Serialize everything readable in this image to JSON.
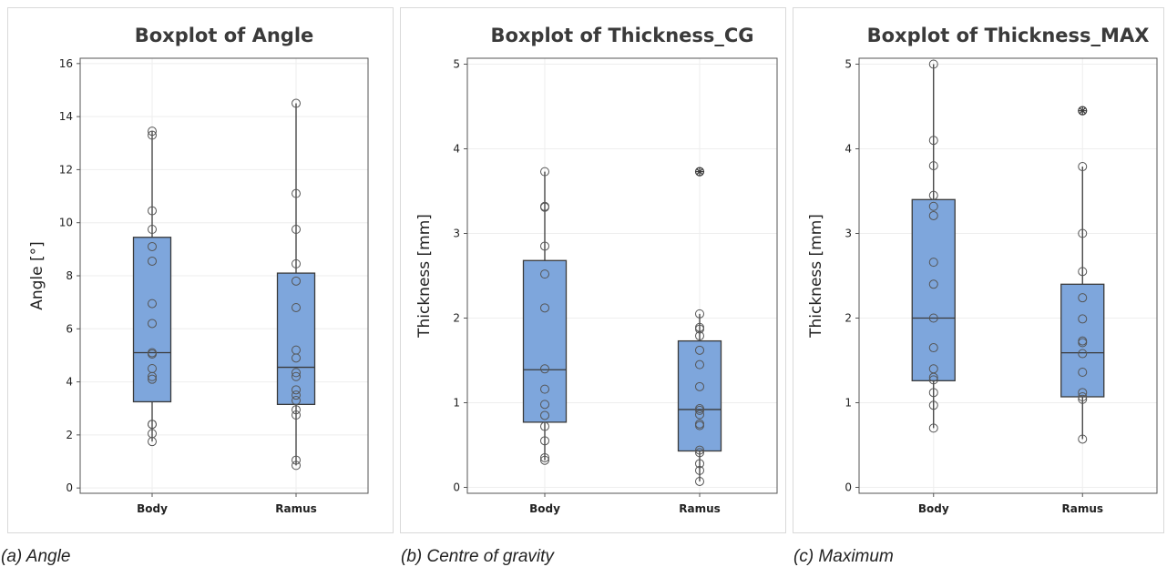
{
  "captions": [
    "(a) Angle",
    "(b) Centre of gravity",
    "(c) Maximum"
  ],
  "colors": {
    "box_fill": "#7ea6dc",
    "box_stroke": "#3a3a3a",
    "point_stroke": "#555555",
    "grid": "#eeeeee",
    "frame": "#555555"
  },
  "chart_data": [
    {
      "type": "box",
      "title": "Boxplot of Angle",
      "xlabel": "",
      "ylabel": "Angle [°]",
      "ylim": [
        -0.2,
        16.2
      ],
      "yticks": [
        0,
        2,
        4,
        6,
        8,
        10,
        12,
        14,
        16
      ],
      "grid": true,
      "categories": [
        "Body",
        "Ramus"
      ],
      "boxes": [
        {
          "name": "Body",
          "q1": 3.25,
          "median": 5.1,
          "q3": 9.45,
          "whisker_low": 1.75,
          "whisker_high": 13.45,
          "outliers": [],
          "points": [
            13.45,
            13.3,
            10.45,
            9.75,
            9.1,
            8.55,
            6.95,
            6.2,
            5.1,
            5.05,
            4.5,
            4.2,
            4.1,
            2.4,
            2.4,
            2.05,
            1.75
          ]
        },
        {
          "name": "Ramus",
          "q1": 3.15,
          "median": 4.55,
          "q3": 8.1,
          "whisker_low": 0.85,
          "whisker_high": 14.5,
          "outliers": [],
          "points": [
            14.5,
            11.1,
            9.75,
            8.45,
            7.8,
            6.8,
            5.2,
            4.9,
            4.35,
            4.2,
            3.7,
            3.5,
            3.3,
            2.95,
            2.75,
            1.05,
            0.85
          ]
        }
      ]
    },
    {
      "type": "box",
      "title": "Boxplot of Thickness_CG",
      "xlabel": "",
      "ylabel": "Thickness [mm]",
      "ylim": [
        -0.07,
        5.07
      ],
      "yticks": [
        0,
        1,
        2,
        3,
        4,
        5
      ],
      "grid": true,
      "categories": [
        "Body",
        "Ramus"
      ],
      "boxes": [
        {
          "name": "Body",
          "q1": 0.77,
          "median": 1.39,
          "q3": 2.68,
          "whisker_low": 0.32,
          "whisker_high": 3.73,
          "outliers": [],
          "points": [
            3.73,
            3.32,
            3.31,
            2.85,
            2.52,
            2.12,
            1.4,
            1.16,
            0.98,
            0.85,
            0.72,
            0.55,
            0.35,
            0.32
          ]
        },
        {
          "name": "Ramus",
          "q1": 0.43,
          "median": 0.92,
          "q3": 1.73,
          "whisker_low": 0.07,
          "whisker_high": 2.05,
          "outliers": [
            3.73
          ],
          "points": [
            2.05,
            1.89,
            1.87,
            1.79,
            1.62,
            1.45,
            1.19,
            0.93,
            0.91,
            0.86,
            0.75,
            0.73,
            0.44,
            0.41,
            0.28,
            0.2,
            0.07
          ]
        }
      ]
    },
    {
      "type": "box",
      "title": "Boxplot of Thickness_MAX",
      "xlabel": "",
      "ylabel": "Thickness [mm]",
      "ylim": [
        -0.07,
        5.07
      ],
      "yticks": [
        0,
        1,
        2,
        3,
        4,
        5
      ],
      "grid": true,
      "categories": [
        "Body",
        "Ramus"
      ],
      "boxes": [
        {
          "name": "Body",
          "q1": 1.26,
          "median": 2.0,
          "q3": 3.4,
          "whisker_low": 0.7,
          "whisker_high": 5.0,
          "outliers": [],
          "points": [
            5.0,
            4.1,
            3.8,
            3.45,
            3.32,
            3.21,
            2.66,
            2.4,
            2.0,
            1.65,
            1.4,
            1.3,
            1.27,
            1.12,
            0.97,
            0.7
          ]
        },
        {
          "name": "Ramus",
          "q1": 1.07,
          "median": 1.59,
          "q3": 2.4,
          "whisker_low": 0.57,
          "whisker_high": 3.79,
          "outliers": [
            4.45
          ],
          "points": [
            3.79,
            3.0,
            2.55,
            2.24,
            1.99,
            1.73,
            1.71,
            1.58,
            1.36,
            1.12,
            1.07,
            1.04,
            0.57
          ]
        }
      ]
    }
  ]
}
